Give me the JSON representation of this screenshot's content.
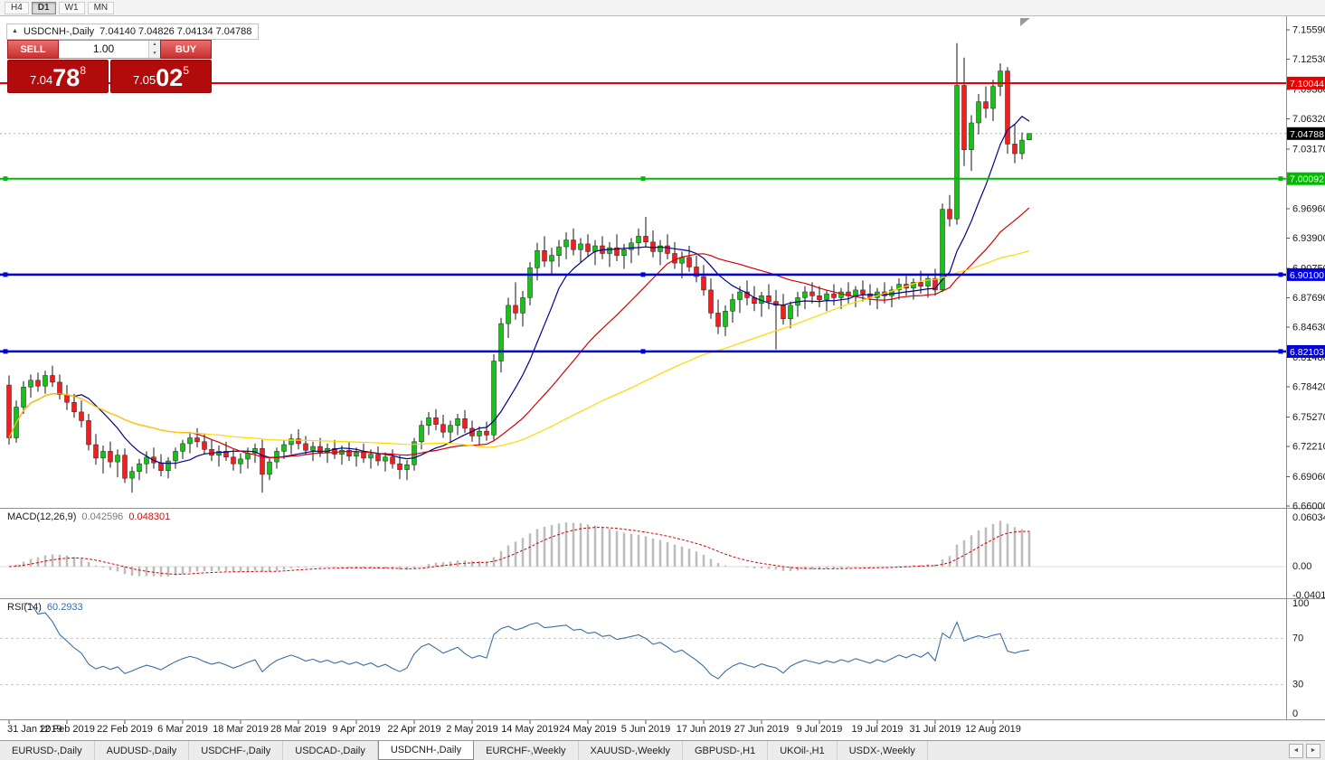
{
  "toolbar": {
    "timeframes": [
      {
        "label": "H4",
        "active": false
      },
      {
        "label": "D1",
        "active": true
      },
      {
        "label": "W1",
        "active": false
      },
      {
        "label": "MN",
        "active": false
      }
    ]
  },
  "icons": {
    "collapse_arrow": "▲",
    "spin_up": "▲",
    "spin_down": "▼",
    "tab_scroll_left": "◄",
    "tab_scroll_right": "►"
  },
  "chart": {
    "symbol": "USDCNH-,Daily",
    "ohlc_text": "7.04140 7.04826 7.04134 7.04788",
    "open": "7.04140",
    "high": "7.04826",
    "low": "7.04134",
    "close": "7.04788"
  },
  "trade_panel": {
    "sell_label": "SELL",
    "buy_label": "BUY",
    "volume": "1.00",
    "sell": {
      "prefix": "7.04",
      "big": "78",
      "sup": "8"
    },
    "buy": {
      "prefix": "7.05",
      "big": "02",
      "sup": "5"
    }
  },
  "macd": {
    "title": "MACD(12,26,9)",
    "main": "0.042596",
    "signal": "0.048301",
    "axis": [
      "0.060343",
      "0.00",
      "-0.040136"
    ],
    "histogram_color": "#bdbdbd",
    "signal_color": "#d40000"
  },
  "rsi": {
    "title": "RSI(14)",
    "value": "60.2933",
    "axis": [
      "100",
      "70",
      "30",
      "0"
    ],
    "levels": [
      70,
      30
    ],
    "color": "#3a6ea5"
  },
  "tabs": [
    {
      "label": "EURUSD-,Daily",
      "active": false
    },
    {
      "label": "AUDUSD-,Daily",
      "active": false
    },
    {
      "label": "USDCHF-,Daily",
      "active": false
    },
    {
      "label": "USDCAD-,Daily",
      "active": false
    },
    {
      "label": "USDCNH-,Daily",
      "active": true
    },
    {
      "label": "EURCHF-,Weekly",
      "active": false
    },
    {
      "label": "XAUUSD-,Weekly",
      "active": false
    },
    {
      "label": "GBPUSD-,H1",
      "active": false
    },
    {
      "label": "UKOil-,H1",
      "active": false
    },
    {
      "label": "USDX-,Weekly",
      "active": false
    }
  ],
  "chart_data": {
    "type": "candlestick",
    "symbol": "USDCNH",
    "timeframe": "Daily",
    "ylim": [
      6.66,
      7.1559
    ],
    "y_ticks": [
      "7.15590",
      "7.12530",
      "7.09380",
      "7.06320",
      "7.03170",
      "6.96960",
      "6.93900",
      "6.90750",
      "6.87690",
      "6.84630",
      "6.81480",
      "6.78420",
      "6.75270",
      "6.72210",
      "6.69060",
      "6.66000"
    ],
    "x_labels": [
      "31 Jan 2019",
      "12 Feb 2019",
      "22 Feb 2019",
      "6 Mar 2019",
      "18 Mar 2019",
      "28 Mar 2019",
      "9 Apr 2019",
      "22 Apr 2019",
      "2 May 2019",
      "14 May 2019",
      "24 May 2019",
      "5 Jun 2019",
      "17 Jun 2019",
      "27 Jun 2019",
      "9 Jul 2019",
      "19 Jul 2019",
      "31 Jul 2019",
      "12 Aug 2019"
    ],
    "label_step": 8,
    "colors": {
      "up": "#16c216",
      "down": "#f51d1d",
      "wick": "#141414"
    },
    "moving_averages": [
      {
        "period": 10,
        "color": "#00008b"
      },
      {
        "period": 25,
        "color": "#d40000"
      },
      {
        "period": 60,
        "color": "#ffd800"
      }
    ],
    "levels": [
      {
        "name": "resistance-line-71004",
        "label": "7.10044",
        "price": 7.10044,
        "color": "#e60000",
        "width": 2,
        "handles": false
      },
      {
        "name": "support-line-70009",
        "label": "7.00092",
        "price": 7.00092,
        "color": "#00bb00",
        "width": 2,
        "handles": true
      },
      {
        "name": "support-line-69010",
        "label": "6.90100",
        "price": 6.901,
        "color": "#0000dd",
        "width": 2.5,
        "handles": true
      },
      {
        "name": "support-line-68210",
        "label": "6.82103",
        "price": 6.82103,
        "color": "#0000dd",
        "width": 2.5,
        "handles": true
      }
    ],
    "current_price": {
      "label": "7.04788",
      "value": 7.04788,
      "badge_color": "#000000"
    },
    "candles": [
      [
        6.786,
        6.796,
        6.724,
        6.731
      ],
      [
        6.731,
        6.77,
        6.726,
        6.763
      ],
      [
        6.763,
        6.79,
        6.756,
        6.784
      ],
      [
        6.784,
        6.797,
        6.773,
        6.791
      ],
      [
        6.791,
        6.799,
        6.779,
        6.785
      ],
      [
        6.785,
        6.801,
        6.777,
        6.796
      ],
      [
        6.796,
        6.806,
        6.784,
        6.789
      ],
      [
        6.789,
        6.797,
        6.771,
        6.776
      ],
      [
        6.776,
        6.786,
        6.76,
        6.768
      ],
      [
        6.768,
        6.777,
        6.752,
        6.758
      ],
      [
        6.758,
        6.77,
        6.742,
        6.749
      ],
      [
        6.749,
        6.756,
        6.718,
        6.724
      ],
      [
        6.724,
        6.735,
        6.703,
        6.71
      ],
      [
        6.71,
        6.723,
        6.694,
        6.717
      ],
      [
        6.717,
        6.727,
        6.7,
        6.706
      ],
      [
        6.706,
        6.719,
        6.69,
        6.713
      ],
      [
        6.713,
        6.72,
        6.684,
        6.689
      ],
      [
        6.689,
        6.701,
        6.674,
        6.696
      ],
      [
        6.696,
        6.709,
        6.687,
        6.704
      ],
      [
        6.704,
        6.717,
        6.694,
        6.711
      ],
      [
        6.711,
        6.721,
        6.699,
        6.705
      ],
      [
        6.705,
        6.714,
        6.691,
        6.697
      ],
      [
        6.697,
        6.711,
        6.689,
        6.707
      ],
      [
        6.707,
        6.721,
        6.699,
        6.717
      ],
      [
        6.717,
        6.729,
        6.709,
        6.725
      ],
      [
        6.725,
        6.737,
        6.715,
        6.731
      ],
      [
        6.731,
        6.741,
        6.721,
        6.727
      ],
      [
        6.727,
        6.735,
        6.714,
        6.719
      ],
      [
        6.719,
        6.729,
        6.707,
        6.713
      ],
      [
        6.713,
        6.723,
        6.701,
        6.717
      ],
      [
        6.717,
        6.727,
        6.707,
        6.711
      ],
      [
        6.711,
        6.719,
        6.697,
        6.704
      ],
      [
        6.704,
        6.715,
        6.694,
        6.709
      ],
      [
        6.709,
        6.721,
        6.699,
        6.715
      ],
      [
        6.715,
        6.725,
        6.705,
        6.72
      ],
      [
        6.72,
        6.729,
        6.674,
        6.693
      ],
      [
        6.693,
        6.711,
        6.687,
        6.706
      ],
      [
        6.706,
        6.721,
        6.699,
        6.717
      ],
      [
        6.717,
        6.729,
        6.709,
        6.724
      ],
      [
        6.724,
        6.735,
        6.714,
        6.73
      ],
      [
        6.73,
        6.74,
        6.719,
        6.725
      ],
      [
        6.725,
        6.733,
        6.713,
        6.718
      ],
      [
        6.718,
        6.727,
        6.707,
        6.722
      ],
      [
        6.722,
        6.731,
        6.711,
        6.716
      ],
      [
        6.716,
        6.725,
        6.705,
        6.72
      ],
      [
        6.72,
        6.729,
        6.709,
        6.714
      ],
      [
        6.714,
        6.723,
        6.703,
        6.718
      ],
      [
        6.718,
        6.727,
        6.707,
        6.712
      ],
      [
        6.712,
        6.721,
        6.701,
        6.716
      ],
      [
        6.716,
        6.725,
        6.705,
        6.71
      ],
      [
        6.71,
        6.719,
        6.699,
        6.714
      ],
      [
        6.714,
        6.722,
        6.702,
        6.707
      ],
      [
        6.707,
        6.716,
        6.696,
        6.711
      ],
      [
        6.711,
        6.719,
        6.699,
        6.704
      ],
      [
        6.704,
        6.713,
        6.688,
        6.698
      ],
      [
        6.698,
        6.708,
        6.687,
        6.703
      ],
      [
        6.703,
        6.731,
        6.697,
        6.727
      ],
      [
        6.727,
        6.749,
        6.719,
        6.744
      ],
      [
        6.744,
        6.758,
        6.734,
        6.752
      ],
      [
        6.752,
        6.761,
        6.739,
        6.745
      ],
      [
        6.745,
        6.755,
        6.731,
        6.737
      ],
      [
        6.737,
        6.749,
        6.727,
        6.744
      ],
      [
        6.744,
        6.756,
        6.734,
        6.751
      ],
      [
        6.751,
        6.76,
        6.736,
        6.741
      ],
      [
        6.741,
        6.749,
        6.727,
        6.733
      ],
      [
        6.733,
        6.743,
        6.723,
        6.738
      ],
      [
        6.738,
        6.748,
        6.728,
        6.734
      ],
      [
        6.734,
        6.818,
        6.729,
        6.811
      ],
      [
        6.811,
        6.856,
        6.799,
        6.85
      ],
      [
        6.85,
        6.877,
        6.835,
        6.869
      ],
      [
        6.869,
        6.893,
        6.854,
        6.861
      ],
      [
        6.861,
        6.884,
        6.847,
        6.877
      ],
      [
        6.877,
        6.914,
        6.869,
        6.908
      ],
      [
        6.908,
        6.934,
        6.895,
        6.926
      ],
      [
        6.926,
        6.941,
        6.909,
        6.915
      ],
      [
        6.915,
        6.929,
        6.901,
        6.921
      ],
      [
        6.921,
        6.937,
        6.909,
        6.93
      ],
      [
        6.93,
        6.945,
        6.917,
        6.937
      ],
      [
        6.937,
        6.949,
        6.921,
        6.927
      ],
      [
        6.927,
        6.939,
        6.913,
        6.933
      ],
      [
        6.933,
        6.943,
        6.919,
        6.925
      ],
      [
        6.925,
        6.937,
        6.911,
        6.931
      ],
      [
        6.931,
        6.941,
        6.917,
        6.923
      ],
      [
        6.923,
        6.935,
        6.909,
        6.929
      ],
      [
        6.929,
        6.943,
        6.915,
        6.921
      ],
      [
        6.921,
        6.933,
        6.907,
        6.927
      ],
      [
        6.927,
        6.939,
        6.913,
        6.934
      ],
      [
        6.934,
        6.949,
        6.921,
        6.941
      ],
      [
        6.941,
        6.961,
        6.929,
        6.935
      ],
      [
        6.935,
        6.947,
        6.919,
        6.925
      ],
      [
        6.925,
        6.937,
        6.911,
        6.931
      ],
      [
        6.931,
        6.943,
        6.917,
        6.923
      ],
      [
        6.923,
        6.935,
        6.907,
        6.913
      ],
      [
        6.913,
        6.925,
        6.897,
        6.919
      ],
      [
        6.919,
        6.931,
        6.904,
        6.909
      ],
      [
        6.909,
        6.921,
        6.893,
        6.899
      ],
      [
        6.899,
        6.911,
        6.879,
        6.885
      ],
      [
        6.885,
        6.897,
        6.855,
        6.861
      ],
      [
        6.861,
        6.875,
        6.839,
        6.847
      ],
      [
        6.847,
        6.869,
        6.837,
        6.863
      ],
      [
        6.863,
        6.881,
        6.851,
        6.875
      ],
      [
        6.875,
        6.889,
        6.861,
        6.883
      ],
      [
        6.883,
        6.895,
        6.869,
        6.877
      ],
      [
        6.877,
        6.889,
        6.863,
        6.871
      ],
      [
        6.871,
        6.883,
        6.857,
        6.879
      ],
      [
        6.879,
        6.891,
        6.865,
        6.873
      ],
      [
        6.873,
        6.885,
        6.823,
        6.869
      ],
      [
        6.869,
        6.881,
        6.849,
        6.855
      ],
      [
        6.855,
        6.873,
        6.845,
        6.869
      ],
      [
        6.869,
        6.883,
        6.857,
        6.877
      ],
      [
        6.877,
        6.889,
        6.865,
        6.883
      ],
      [
        6.883,
        6.893,
        6.871,
        6.879
      ],
      [
        6.879,
        6.889,
        6.867,
        6.875
      ],
      [
        6.875,
        6.885,
        6.863,
        6.881
      ],
      [
        6.881,
        6.891,
        6.869,
        6.877
      ],
      [
        6.877,
        6.887,
        6.865,
        6.883
      ],
      [
        6.883,
        6.893,
        6.871,
        6.879
      ],
      [
        6.879,
        6.889,
        6.867,
        6.885
      ],
      [
        6.885,
        6.895,
        6.873,
        6.881
      ],
      [
        6.881,
        6.891,
        6.869,
        6.877
      ],
      [
        6.877,
        6.887,
        6.865,
        6.883
      ],
      [
        6.883,
        6.893,
        6.871,
        6.879
      ],
      [
        6.879,
        6.889,
        6.867,
        6.885
      ],
      [
        6.885,
        6.897,
        6.875,
        6.891
      ],
      [
        6.891,
        6.901,
        6.879,
        6.887
      ],
      [
        6.887,
        6.897,
        6.875,
        6.893
      ],
      [
        6.893,
        6.905,
        6.881,
        6.889
      ],
      [
        6.889,
        6.901,
        6.877,
        6.897
      ],
      [
        6.897,
        6.907,
        6.879,
        6.885
      ],
      [
        6.885,
        6.975,
        6.883,
        6.969
      ],
      [
        6.969,
        6.984,
        6.951,
        6.959
      ],
      [
        6.959,
        7.142,
        6.953,
        7.098
      ],
      [
        7.098,
        7.127,
        7.014,
        7.031
      ],
      [
        7.031,
        7.067,
        7.009,
        7.059
      ],
      [
        7.059,
        7.089,
        7.047,
        7.081
      ],
      [
        7.081,
        7.097,
        7.064,
        7.074
      ],
      [
        7.074,
        7.104,
        7.061,
        7.097
      ],
      [
        7.097,
        7.121,
        7.087,
        7.113
      ],
      [
        7.113,
        7.117,
        7.027,
        7.037
      ],
      [
        7.037,
        7.057,
        7.017,
        7.027
      ],
      [
        7.027,
        7.049,
        7.021,
        7.041
      ],
      [
        7.0414,
        7.04826,
        7.04134,
        7.04788
      ]
    ]
  }
}
